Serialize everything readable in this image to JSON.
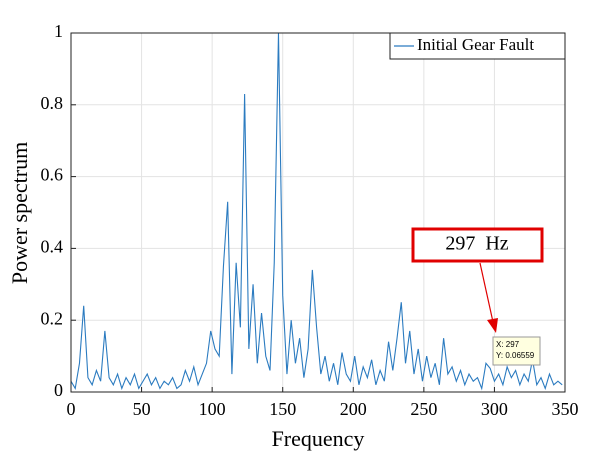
{
  "chart_data": {
    "type": "line",
    "xlabel": "Frequency",
    "ylabel": "Power spectrum",
    "x": [
      0,
      3,
      6,
      9,
      12,
      15,
      18,
      21,
      24,
      27,
      30,
      33,
      36,
      39,
      42,
      45,
      48,
      51,
      54,
      57,
      60,
      63,
      66,
      69,
      72,
      75,
      78,
      81,
      84,
      87,
      90,
      93,
      96,
      99,
      102,
      105,
      108,
      111,
      114,
      117,
      120,
      123,
      126,
      129,
      132,
      135,
      138,
      141,
      144,
      147,
      150,
      153,
      156,
      159,
      162,
      165,
      168,
      171,
      174,
      177,
      180,
      183,
      186,
      189,
      192,
      195,
      198,
      201,
      204,
      207,
      210,
      213,
      216,
      219,
      222,
      225,
      228,
      231,
      234,
      237,
      240,
      243,
      246,
      249,
      252,
      255,
      258,
      261,
      264,
      267,
      270,
      273,
      276,
      279,
      282,
      285,
      288,
      291,
      294,
      297,
      300,
      303,
      306,
      309,
      312,
      315,
      318,
      321,
      324,
      327,
      330,
      333,
      336,
      339,
      342,
      345,
      348
    ],
    "series": [
      {
        "name": "Initial Gear Fault",
        "color": "#2b7bc0",
        "values": [
          0.03,
          0.01,
          0.08,
          0.24,
          0.04,
          0.02,
          0.06,
          0.03,
          0.17,
          0.04,
          0.02,
          0.05,
          0.01,
          0.04,
          0.02,
          0.05,
          0.01,
          0.03,
          0.05,
          0.02,
          0.04,
          0.01,
          0.03,
          0.02,
          0.04,
          0.01,
          0.02,
          0.06,
          0.03,
          0.07,
          0.02,
          0.05,
          0.08,
          0.17,
          0.12,
          0.1,
          0.35,
          0.53,
          0.05,
          0.36,
          0.18,
          0.83,
          0.12,
          0.3,
          0.08,
          0.22,
          0.1,
          0.06,
          0.36,
          1.0,
          0.27,
          0.05,
          0.2,
          0.08,
          0.15,
          0.04,
          0.12,
          0.34,
          0.18,
          0.05,
          0.1,
          0.03,
          0.08,
          0.02,
          0.11,
          0.05,
          0.03,
          0.1,
          0.02,
          0.07,
          0.04,
          0.09,
          0.02,
          0.06,
          0.03,
          0.14,
          0.06,
          0.15,
          0.25,
          0.08,
          0.17,
          0.05,
          0.12,
          0.03,
          0.1,
          0.04,
          0.08,
          0.02,
          0.15,
          0.05,
          0.07,
          0.03,
          0.06,
          0.02,
          0.05,
          0.03,
          0.04,
          0.01,
          0.08,
          0.06559,
          0.03,
          0.05,
          0.02,
          0.07,
          0.04,
          0.06,
          0.02,
          0.05,
          0.03,
          0.09,
          0.02,
          0.04,
          0.01,
          0.05,
          0.02,
          0.03,
          0.02
        ]
      }
    ],
    "xlim": [
      0,
      350
    ],
    "xticks": [
      0,
      50,
      100,
      150,
      200,
      250,
      300,
      350
    ],
    "ylim": [
      0,
      1
    ],
    "yticks": [
      0,
      0.2,
      0.4,
      0.6,
      0.8,
      1
    ],
    "grid": true,
    "legend": "upper right",
    "annotation": "297  Hz",
    "datatip": {
      "x_label": "X: 297",
      "y_label": "Y: 0.06559"
    }
  }
}
